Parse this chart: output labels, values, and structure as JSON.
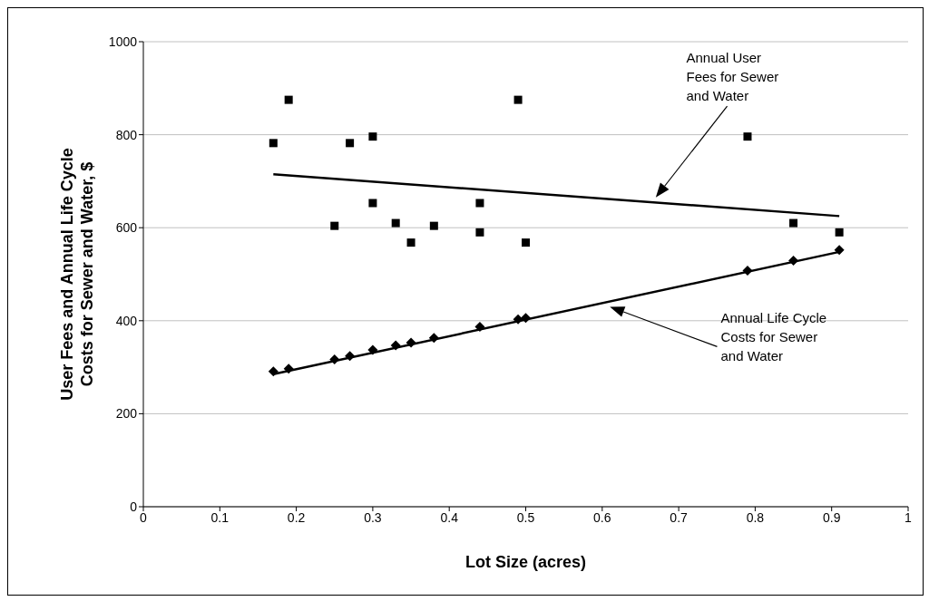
{
  "chart_data": {
    "type": "scatter",
    "xlabel": "Lot Size (acres)",
    "ylabel": "User Fees and Annual Life Cycle Costs for Sewer and Water, $",
    "xlim": [
      0,
      1
    ],
    "xticks": [
      0,
      0.1,
      0.2,
      0.3,
      0.4,
      0.5,
      0.6,
      0.7,
      0.8,
      0.9,
      1
    ],
    "ylim": [
      0,
      1000
    ],
    "yticks": [
      0,
      200,
      400,
      600,
      800,
      1000
    ],
    "grid": "y",
    "series": [
      {
        "type": "scatter",
        "marker": "square",
        "color": "#000000",
        "x": [
          0.17,
          0.19,
          0.25,
          0.27,
          0.3,
          0.3,
          0.33,
          0.35,
          0.38,
          0.44,
          0.44,
          0.49,
          0.5,
          0.79,
          0.85,
          0.91
        ],
        "values": [
          782,
          875,
          604,
          782,
          796,
          653,
          610,
          568,
          604,
          653,
          590,
          875,
          568,
          796,
          610,
          590
        ]
      },
      {
        "type": "scatter",
        "marker": "diamond",
        "color": "#000000",
        "x": [
          0.17,
          0.19,
          0.25,
          0.27,
          0.3,
          0.33,
          0.35,
          0.38,
          0.44,
          0.49,
          0.5,
          0.79,
          0.85,
          0.91
        ],
        "values": [
          291,
          297,
          317,
          324,
          337,
          347,
          353,
          363,
          387,
          403,
          406,
          508,
          529,
          552
        ]
      },
      {
        "type": "line",
        "marker": "none",
        "color": "#000000",
        "x": [
          0.17,
          0.91
        ],
        "values": [
          715,
          625
        ]
      },
      {
        "type": "line",
        "marker": "none",
        "color": "#000000",
        "x": [
          0.17,
          0.91
        ],
        "values": [
          285,
          548
        ]
      }
    ],
    "annotations": [
      "Annual User Fees for Sewer and Water",
      "Annual Life Cycle Costs for Sewer and Water"
    ]
  }
}
